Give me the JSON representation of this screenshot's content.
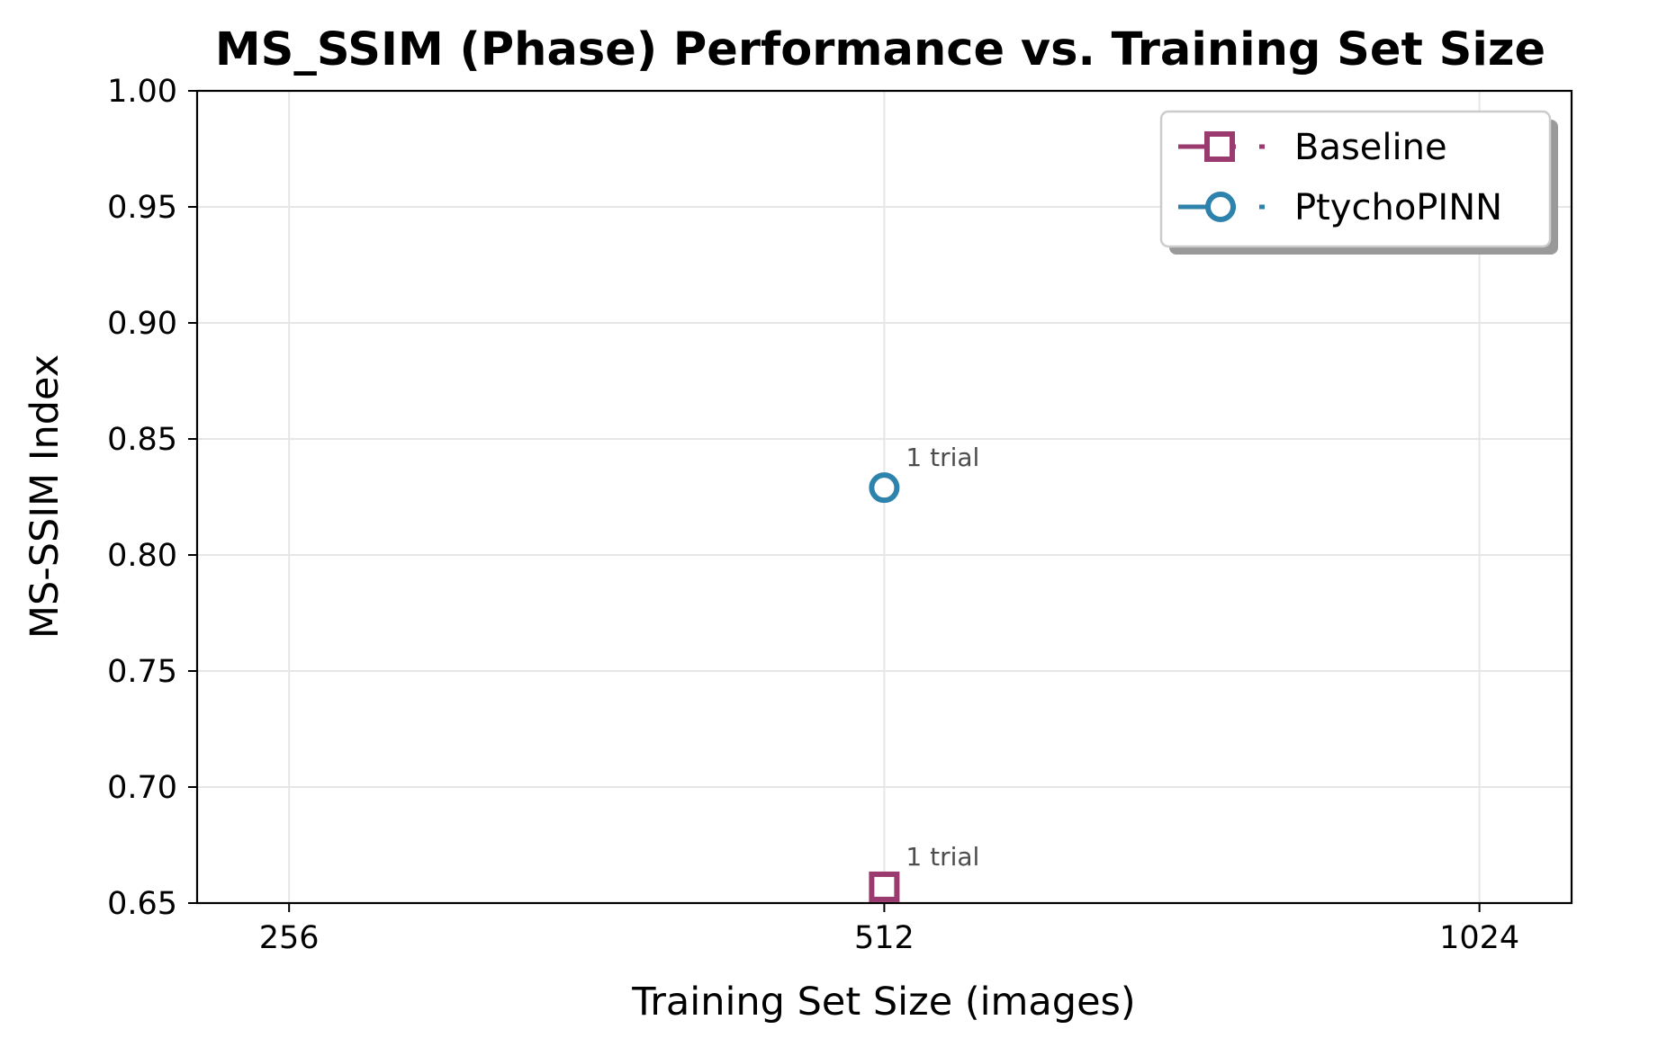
{
  "chart_data": {
    "type": "line",
    "title": "MS_SSIM (Phase) Performance vs. Training Set Size",
    "xlabel": "Training Set Size (images)",
    "ylabel": "MS-SSIM Index",
    "x_scale": "log2",
    "x_ticks": [
      256,
      512,
      1024
    ],
    "x_tick_labels": [
      "256",
      "512",
      "1024"
    ],
    "xlim": [
      230,
      1140
    ],
    "ylim": [
      0.65,
      1.0
    ],
    "y_ticks": [
      0.65,
      0.7,
      0.75,
      0.8,
      0.85,
      0.9,
      0.95,
      1.0
    ],
    "y_tick_labels": [
      "0.65",
      "0.70",
      "0.75",
      "0.80",
      "0.85",
      "0.90",
      "0.95",
      "1.00"
    ],
    "grid": true,
    "legend_position": "top-right",
    "series": [
      {
        "name": "Baseline",
        "color": "#9b3a6e",
        "marker": "square",
        "points": [
          {
            "x": 512,
            "y": 0.657,
            "annotation": "1 trial"
          }
        ]
      },
      {
        "name": "PtychoPINN",
        "color": "#2e83ad",
        "marker": "circle",
        "points": [
          {
            "x": 512,
            "y": 0.829,
            "annotation": "1 trial"
          }
        ]
      }
    ]
  }
}
